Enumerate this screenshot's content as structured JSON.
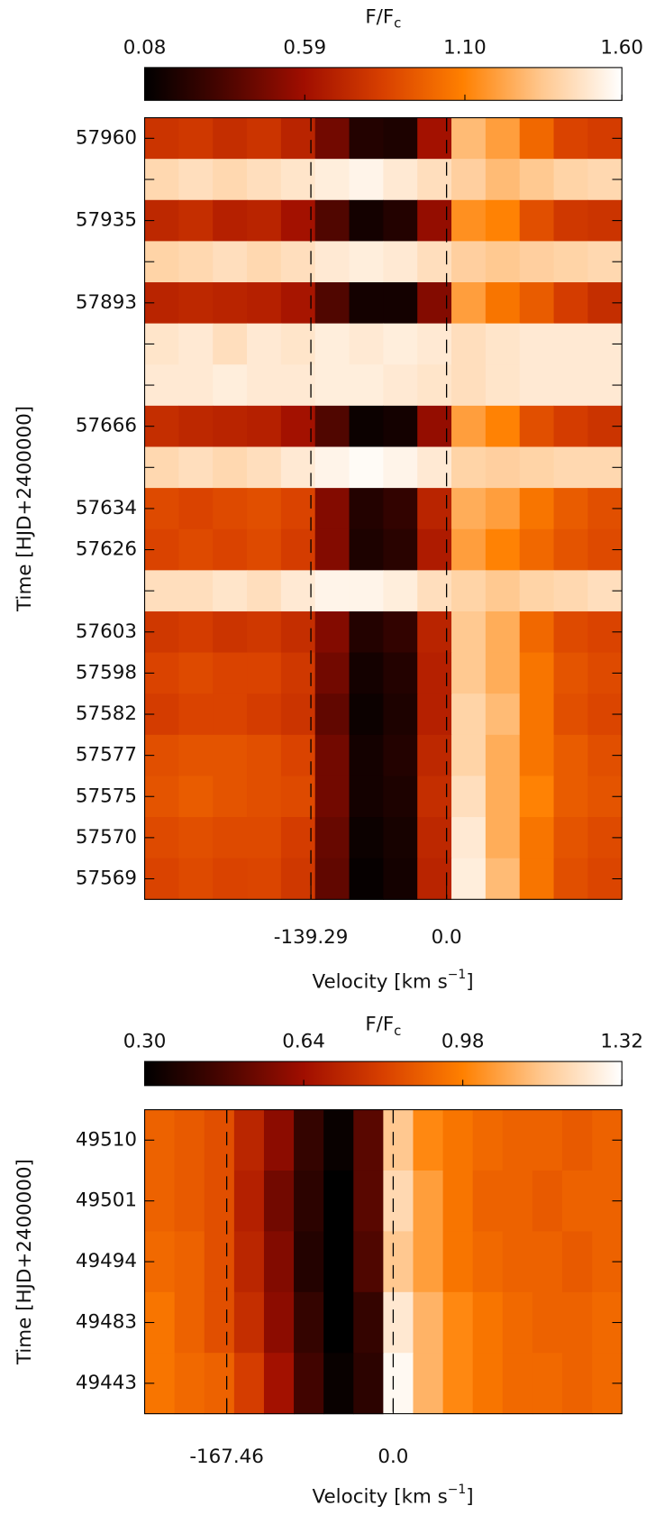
{
  "chart_data": [
    {
      "type": "heatmap",
      "colorbar_label": [
        "F/F",
        "c"
      ],
      "zlim": [
        0.08,
        1.6
      ],
      "zticks": [
        0.08,
        0.59,
        {
          "value": 1.1,
          "label": "1.10"
        },
        {
          "value": 1.6,
          "label": "1.60"
        }
      ],
      "colormap": [
        "#000000",
        "#4a0500",
        "#a00e00",
        "#d84000",
        "#ff8000",
        "#ffc890",
        "#ffffff"
      ],
      "ylabel": "Time [HJD+2400000]",
      "xlabel": [
        "Velocity [km s",
        "−1",
        "]"
      ],
      "xlim": [
        -310,
        180
      ],
      "xticks": [
        -139.29,
        {
          "value": 0,
          "label": "0.0"
        }
      ],
      "dashed_lines": true,
      "x": [
        -292.5,
        -257.5,
        -222.5,
        -187.5,
        -152.5,
        -117.5,
        -82.5,
        -47.5,
        -12.5,
        22.5,
        57.5,
        92.5,
        127.5,
        162.5
      ],
      "y": [
        "57960",
        null,
        "57935",
        null,
        "57893",
        null,
        null,
        "57666",
        null,
        "57634",
        "57626",
        null,
        "57603",
        "57598",
        "57582",
        "57577",
        "57575",
        "57570",
        "57569"
      ],
      "z": [
        [
          0.78,
          0.8,
          0.75,
          0.78,
          0.7,
          0.45,
          0.2,
          0.18,
          0.6,
          1.3,
          1.2,
          1.0,
          0.85,
          0.82
        ],
        [
          1.42,
          1.45,
          1.42,
          1.45,
          1.48,
          1.52,
          1.55,
          1.5,
          1.45,
          1.38,
          1.3,
          1.35,
          1.4,
          1.42
        ],
        [
          0.72,
          0.75,
          0.68,
          0.7,
          0.6,
          0.35,
          0.15,
          0.2,
          0.55,
          1.15,
          1.1,
          0.9,
          0.8,
          0.78
        ],
        [
          1.4,
          1.42,
          1.45,
          1.42,
          1.45,
          1.5,
          1.52,
          1.5,
          1.45,
          1.38,
          1.35,
          1.38,
          1.4,
          1.42
        ],
        [
          0.7,
          0.72,
          0.7,
          0.68,
          0.62,
          0.35,
          0.15,
          0.15,
          0.5,
          1.2,
          1.05,
          0.95,
          0.82,
          0.75
        ],
        [
          1.48,
          1.5,
          1.45,
          1.5,
          1.48,
          1.52,
          1.5,
          1.52,
          1.5,
          1.45,
          1.48,
          1.5,
          1.5,
          1.5
        ],
        [
          1.5,
          1.5,
          1.52,
          1.5,
          1.5,
          1.52,
          1.52,
          1.5,
          1.48,
          1.45,
          1.48,
          1.5,
          1.5,
          1.5
        ],
        [
          0.75,
          0.72,
          0.7,
          0.68,
          0.6,
          0.35,
          0.12,
          0.15,
          0.55,
          1.2,
          1.1,
          0.9,
          0.82,
          0.78
        ],
        [
          1.42,
          1.45,
          1.42,
          1.45,
          1.5,
          1.55,
          1.58,
          1.55,
          1.5,
          1.4,
          1.38,
          1.4,
          1.42,
          1.42
        ],
        [
          0.88,
          0.85,
          0.88,
          0.9,
          0.85,
          0.5,
          0.2,
          0.25,
          0.7,
          1.25,
          1.2,
          1.05,
          0.95,
          0.9
        ],
        [
          0.85,
          0.88,
          0.85,
          0.88,
          0.82,
          0.5,
          0.18,
          0.22,
          0.65,
          1.2,
          1.1,
          1.0,
          0.92,
          0.88
        ],
        [
          1.45,
          1.45,
          1.48,
          1.45,
          1.5,
          1.55,
          1.55,
          1.52,
          1.45,
          1.4,
          1.35,
          1.4,
          1.42,
          1.45
        ],
        [
          0.8,
          0.82,
          0.78,
          0.8,
          0.75,
          0.5,
          0.2,
          0.25,
          0.7,
          1.35,
          1.25,
          1.0,
          0.88,
          0.85
        ],
        [
          0.85,
          0.88,
          0.85,
          0.85,
          0.8,
          0.45,
          0.15,
          0.2,
          0.68,
          1.35,
          1.25,
          1.05,
          0.92,
          0.88
        ],
        [
          0.82,
          0.85,
          0.85,
          0.82,
          0.78,
          0.4,
          0.12,
          0.18,
          0.68,
          1.4,
          1.3,
          1.05,
          0.9,
          0.86
        ],
        [
          0.9,
          0.92,
          0.92,
          0.9,
          0.85,
          0.45,
          0.15,
          0.2,
          0.72,
          1.4,
          1.25,
          1.05,
          0.95,
          0.9
        ],
        [
          0.92,
          0.95,
          0.92,
          0.9,
          0.88,
          0.45,
          0.15,
          0.18,
          0.75,
          1.45,
          1.25,
          1.1,
          0.95,
          0.92
        ],
        [
          0.88,
          0.9,
          0.88,
          0.88,
          0.82,
          0.42,
          0.12,
          0.16,
          0.72,
          1.5,
          1.25,
          1.05,
          0.92,
          0.88
        ],
        [
          0.85,
          0.88,
          0.85,
          0.86,
          0.8,
          0.4,
          0.1,
          0.15,
          0.7,
          1.52,
          1.3,
          1.05,
          0.9,
          0.86
        ]
      ]
    },
    {
      "type": "heatmap",
      "colorbar_label": [
        "F/F",
        "c"
      ],
      "zlim": [
        0.3,
        1.32
      ],
      "zticks": [
        {
          "value": 0.3,
          "label": "0.30"
        },
        0.64,
        0.98,
        1.32
      ],
      "colormap": [
        "#000000",
        "#4a0500",
        "#a00e00",
        "#d84000",
        "#ff8000",
        "#ffc890",
        "#ffffff"
      ],
      "ylabel": "Time [HJD+2400000]",
      "xlabel": [
        "Velocity [km s",
        "−1",
        "]"
      ],
      "xlim": [
        -250,
        230
      ],
      "xticks": [
        -167.46,
        {
          "value": 0,
          "label": "0.0"
        }
      ],
      "dashed_lines": true,
      "x": [
        -235,
        -205,
        -175,
        -145,
        -115,
        -85,
        -55,
        -25,
        5,
        35,
        65,
        95,
        125,
        155,
        185,
        215
      ],
      "y": [
        "49510",
        "49501",
        "49494",
        "49483",
        "49443"
      ],
      "z": [
        [
          0.9,
          0.88,
          0.85,
          0.72,
          0.6,
          0.42,
          0.32,
          0.5,
          1.15,
          1.0,
          0.95,
          0.92,
          0.9,
          0.9,
          0.88,
          0.9
        ],
        [
          0.9,
          0.88,
          0.85,
          0.7,
          0.55,
          0.4,
          0.3,
          0.5,
          1.2,
          1.05,
          0.95,
          0.9,
          0.9,
          0.88,
          0.9,
          0.9
        ],
        [
          0.92,
          0.9,
          0.85,
          0.72,
          0.58,
          0.38,
          0.3,
          0.48,
          1.15,
          1.05,
          0.95,
          0.92,
          0.9,
          0.9,
          0.88,
          0.9
        ],
        [
          0.95,
          0.9,
          0.85,
          0.75,
          0.6,
          0.42,
          0.3,
          0.42,
          1.25,
          1.1,
          1.0,
          0.95,
          0.92,
          0.9,
          0.9,
          0.92
        ],
        [
          0.95,
          0.92,
          0.9,
          0.8,
          0.65,
          0.45,
          0.32,
          0.4,
          1.3,
          1.1,
          1.0,
          0.95,
          0.92,
          0.92,
          0.9,
          0.92
        ]
      ]
    }
  ]
}
